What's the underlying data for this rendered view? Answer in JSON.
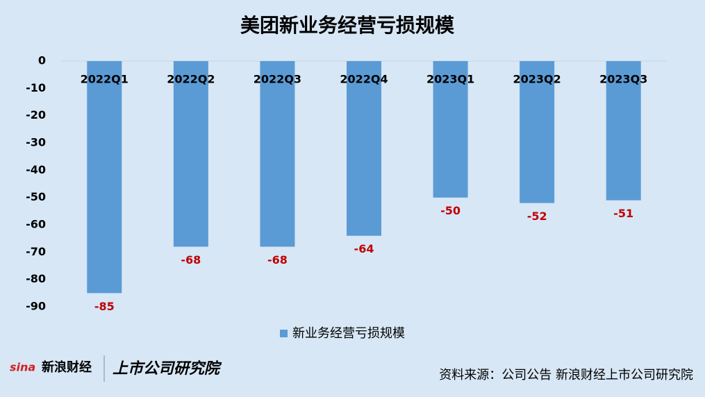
{
  "chart_data": {
    "type": "bar",
    "title": "美团新业务经营亏损规模",
    "categories": [
      "2022Q1",
      "2022Q2",
      "2022Q3",
      "2022Q4",
      "2023Q1",
      "2023Q2",
      "2023Q3"
    ],
    "series": [
      {
        "name": "新业务经营亏损规模",
        "color": "#5b9bd5",
        "values": [
          -85,
          -68,
          -68,
          -64,
          -50,
          -52,
          -51
        ]
      }
    ],
    "ylim": [
      -90,
      0
    ],
    "yticks": [
      0,
      -10,
      -20,
      -30,
      -40,
      -50,
      -60,
      -70,
      -80,
      -90
    ],
    "grid": true,
    "legend": "bottom",
    "value_label_color": "#c00000",
    "source": "资料来源：公司公告 新浪财经上市公司研究院"
  },
  "footer": {
    "brand": "新浪财经",
    "institute": "上市公司研究院"
  }
}
